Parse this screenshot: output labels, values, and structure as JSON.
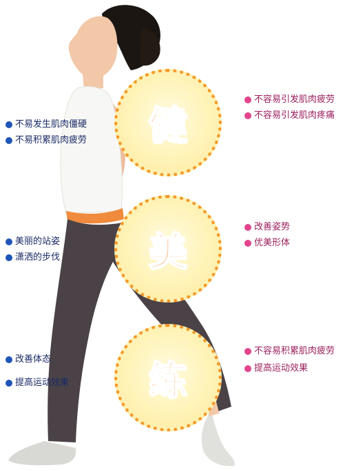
{
  "panels": [
    {
      "glyph": "健",
      "left_items": [
        "不易发生肌肉僵硬",
        "不易积累肌肉疲劳"
      ],
      "right_items": [
        "不容易引发肌肉疲劳",
        "不容易引发肌肉疼痛"
      ]
    },
    {
      "glyph": "美",
      "left_items": [
        "美丽的站姿",
        "潇洒的步伐"
      ],
      "right_items": [
        "改善姿势",
        "优美形体"
      ]
    },
    {
      "glyph": "练",
      "left_items": [
        "改善体态",
        "提高运动效果"
      ],
      "right_items": [
        "不容易积累肌肉疲劳",
        "提高运动效果"
      ]
    }
  ],
  "colors": {
    "left_bullet": "#1f55b8",
    "right_bullet": "#e2448c",
    "circle_border": "#f39a2a",
    "glyph": "#f47a1f"
  }
}
